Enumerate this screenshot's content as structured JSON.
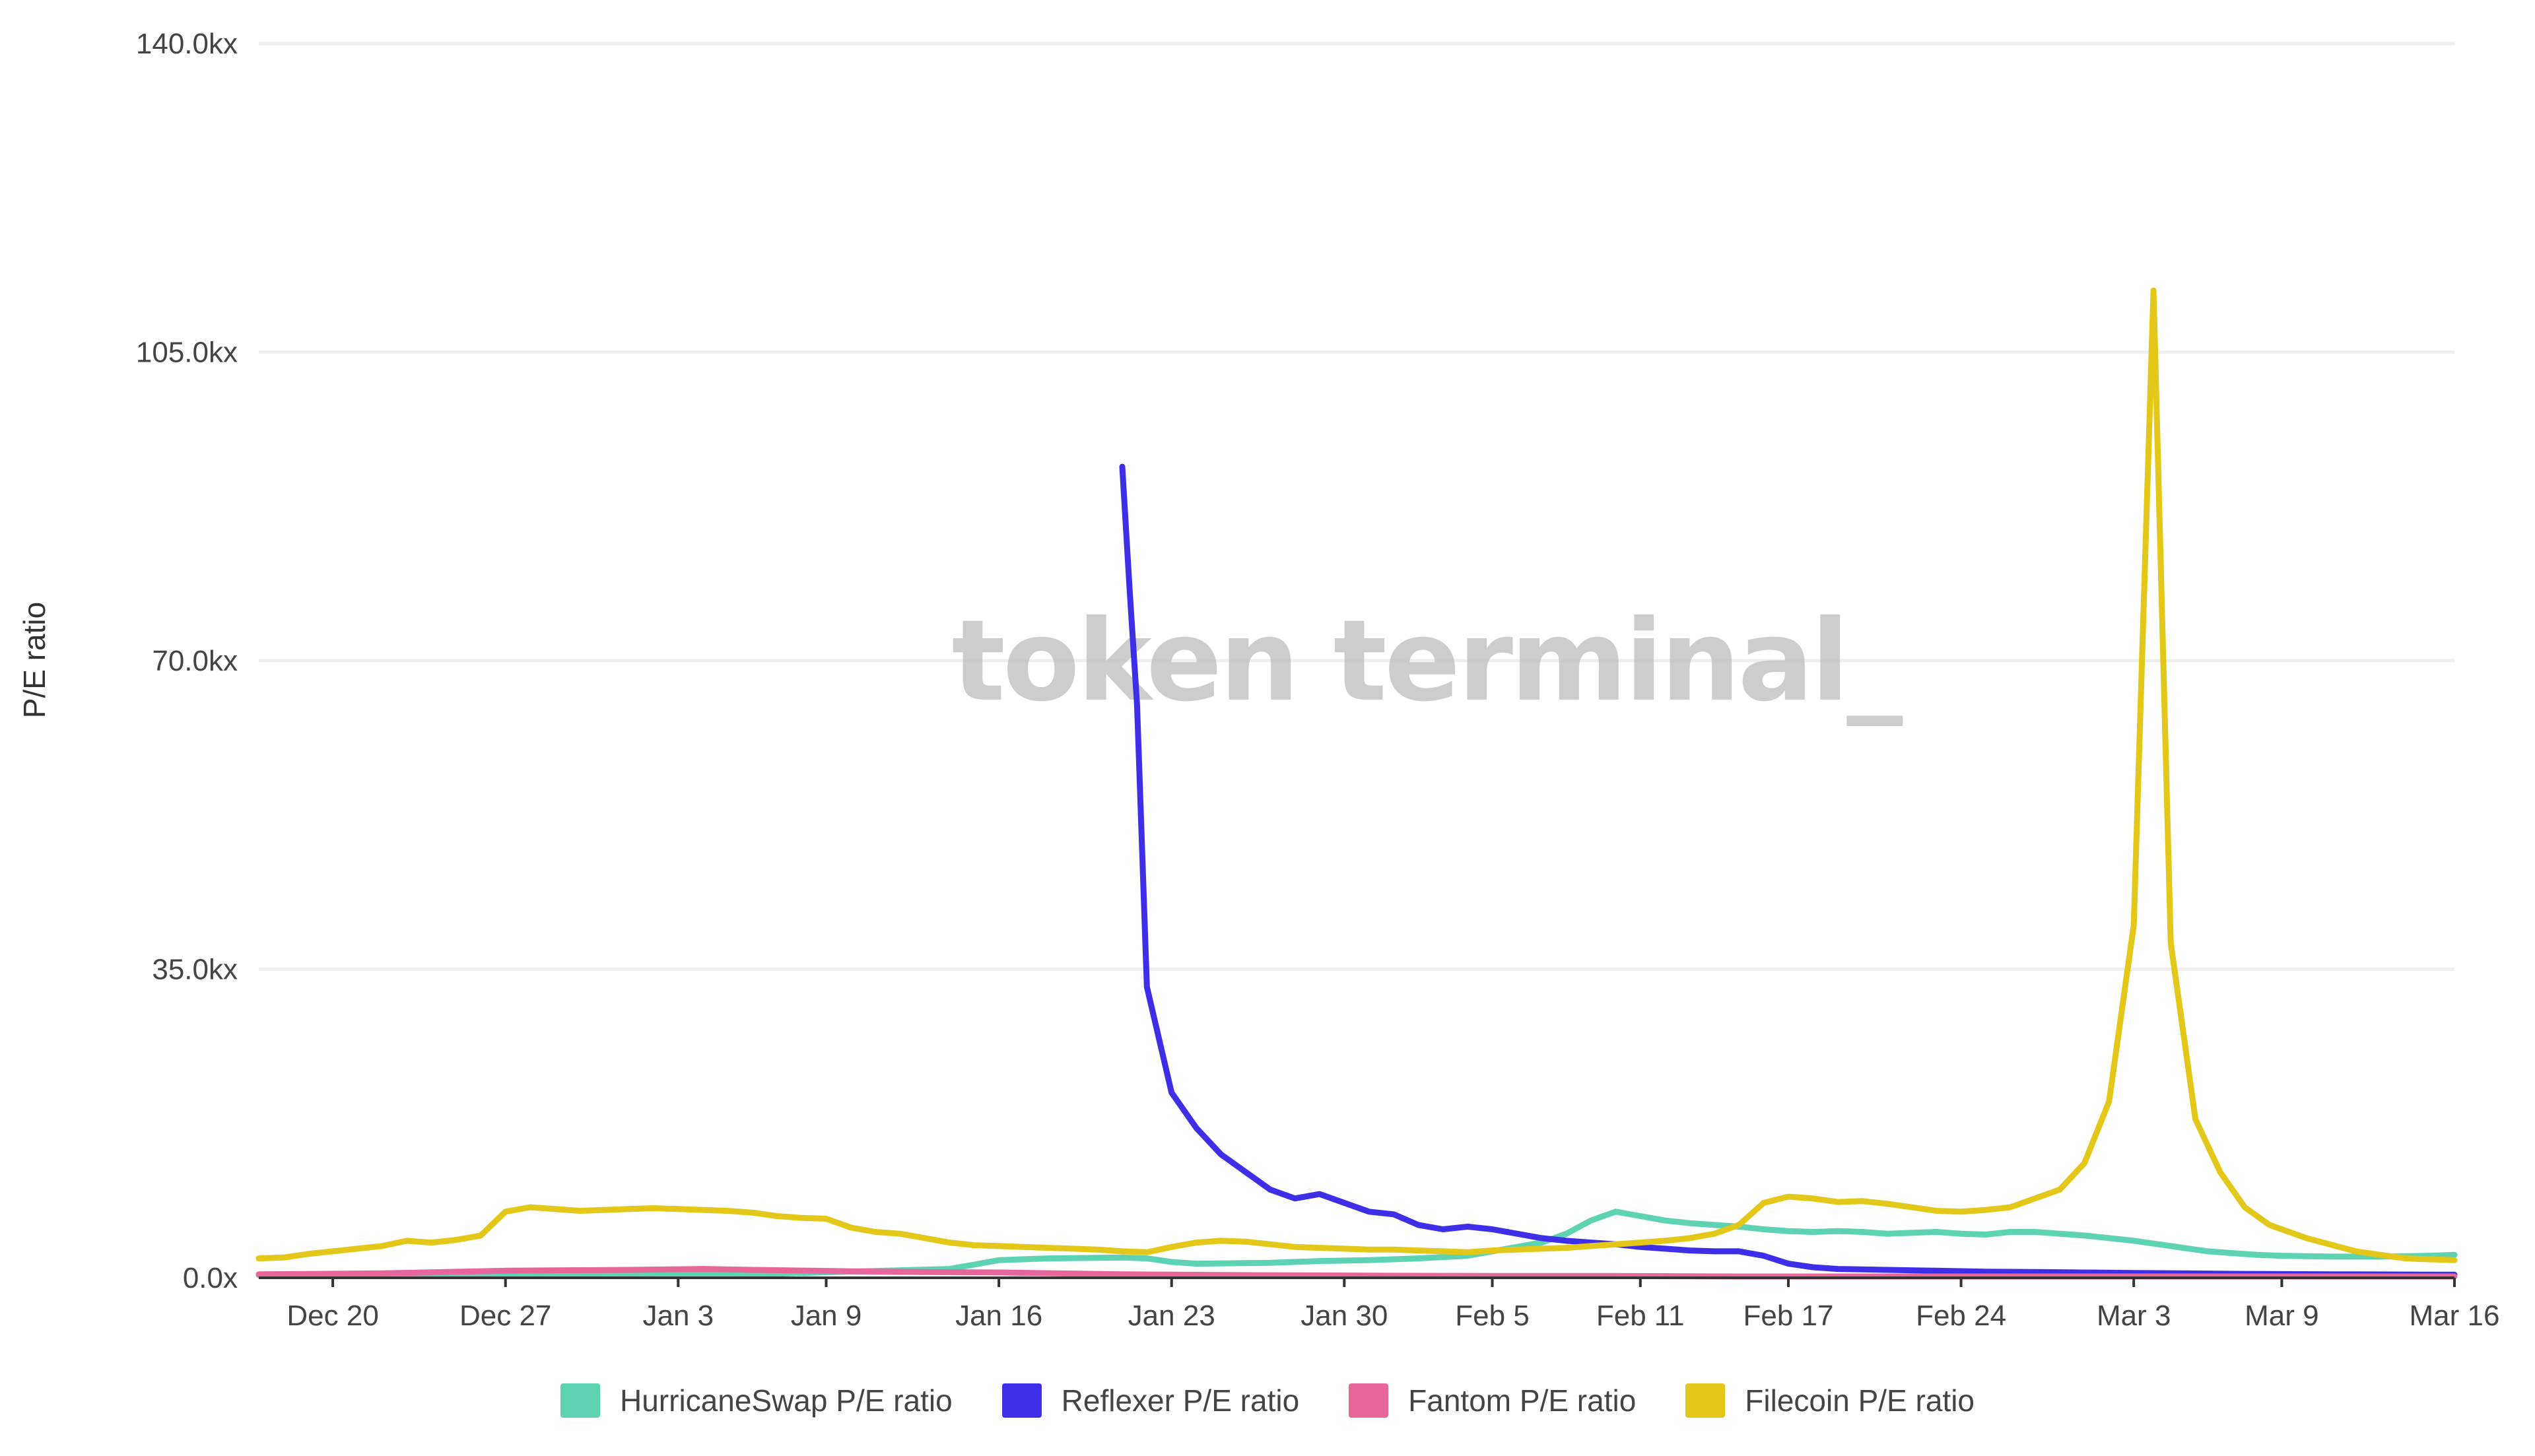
{
  "watermark": "token terminal_",
  "chart_data": {
    "type": "line",
    "title": "",
    "xlabel": "",
    "ylabel": "P/E ratio",
    "ylim": [
      0,
      140000
    ],
    "y_ticks": [
      "0.0x",
      "35.0kx",
      "70.0kx",
      "105.0kx",
      "140.0kx"
    ],
    "y_tick_values": [
      0,
      35000,
      70000,
      105000,
      140000
    ],
    "x_tick_labels": [
      "Dec 20",
      "Dec 27",
      "Jan 3",
      "Jan 9",
      "Jan 16",
      "Jan 23",
      "Jan 30",
      "Feb 5",
      "Feb 11",
      "Feb 17",
      "Feb 24",
      "Mar 3",
      "Mar 9",
      "Mar 16"
    ],
    "x_tick_days": [
      3,
      10,
      17,
      23,
      30,
      37,
      44,
      50,
      56,
      62,
      69,
      76,
      82,
      89
    ],
    "x_day_range": [
      0,
      89
    ],
    "x_start_date": "Dec 17",
    "grid": true,
    "legend_position": "bottom",
    "series": [
      {
        "name": "HurricaneSwap P/E ratio",
        "color": "#5dd3b3",
        "points": [
          [
            0,
            300
          ],
          [
            10,
            300
          ],
          [
            20,
            400
          ],
          [
            28,
            1000
          ],
          [
            29,
            1500
          ],
          [
            30,
            2000
          ],
          [
            32,
            2200
          ],
          [
            35,
            2300
          ],
          [
            36,
            2200
          ],
          [
            37,
            1800
          ],
          [
            38,
            1600
          ],
          [
            41,
            1700
          ],
          [
            43,
            1900
          ],
          [
            45,
            2000
          ],
          [
            47,
            2200
          ],
          [
            49,
            2500
          ],
          [
            50,
            3000
          ],
          [
            52,
            4000
          ],
          [
            53,
            5000
          ],
          [
            54,
            6500
          ],
          [
            55,
            7500
          ],
          [
            56,
            7000
          ],
          [
            57,
            6500
          ],
          [
            58,
            6200
          ],
          [
            59,
            6000
          ],
          [
            60,
            5800
          ],
          [
            61,
            5500
          ],
          [
            62,
            5300
          ],
          [
            63,
            5200
          ],
          [
            64,
            5300
          ],
          [
            65,
            5200
          ],
          [
            66,
            5000
          ],
          [
            67,
            5100
          ],
          [
            68,
            5200
          ],
          [
            69,
            5000
          ],
          [
            70,
            4900
          ],
          [
            71,
            5200
          ],
          [
            72,
            5200
          ],
          [
            73,
            5000
          ],
          [
            74,
            4800
          ],
          [
            75,
            4500
          ],
          [
            76,
            4200
          ],
          [
            77,
            3800
          ],
          [
            78,
            3400
          ],
          [
            79,
            3000
          ],
          [
            80,
            2800
          ],
          [
            81,
            2600
          ],
          [
            82,
            2500
          ],
          [
            84,
            2400
          ],
          [
            86,
            2400
          ],
          [
            88,
            2500
          ],
          [
            89,
            2600
          ]
        ]
      },
      {
        "name": "Reflexer P/E ratio",
        "color": "#3f2ee8",
        "points": [
          [
            35,
            92000
          ],
          [
            35.3,
            78000
          ],
          [
            35.6,
            65000
          ],
          [
            36,
            33000
          ],
          [
            37,
            21000
          ],
          [
            38,
            17000
          ],
          [
            39,
            14000
          ],
          [
            40,
            12000
          ],
          [
            41,
            10000
          ],
          [
            42,
            9000
          ],
          [
            43,
            9500
          ],
          [
            44,
            8500
          ],
          [
            45,
            7500
          ],
          [
            46,
            7200
          ],
          [
            47,
            6000
          ],
          [
            48,
            5500
          ],
          [
            49,
            5800
          ],
          [
            50,
            5500
          ],
          [
            51,
            5000
          ],
          [
            52,
            4500
          ],
          [
            53,
            4200
          ],
          [
            54,
            4000
          ],
          [
            55,
            3800
          ],
          [
            56,
            3500
          ],
          [
            57,
            3300
          ],
          [
            58,
            3100
          ],
          [
            59,
            3000
          ],
          [
            60,
            3000
          ],
          [
            61,
            2500
          ],
          [
            62,
            1600
          ],
          [
            63,
            1200
          ],
          [
            64,
            1000
          ],
          [
            66,
            900
          ],
          [
            68,
            800
          ],
          [
            70,
            700
          ],
          [
            72,
            650
          ],
          [
            74,
            600
          ],
          [
            76,
            550
          ],
          [
            78,
            500
          ],
          [
            80,
            450
          ],
          [
            84,
            400
          ],
          [
            89,
            350
          ]
        ]
      },
      {
        "name": "Fantom P/E ratio",
        "color": "#e8679a",
        "points": [
          [
            0,
            400
          ],
          [
            5,
            500
          ],
          [
            10,
            800
          ],
          [
            15,
            900
          ],
          [
            18,
            1000
          ],
          [
            20,
            900
          ],
          [
            25,
            700
          ],
          [
            30,
            600
          ],
          [
            35,
            400
          ],
          [
            40,
            300
          ],
          [
            45,
            250
          ],
          [
            50,
            200
          ],
          [
            55,
            200
          ],
          [
            60,
            150
          ],
          [
            65,
            150
          ],
          [
            70,
            150
          ],
          [
            75,
            150
          ],
          [
            80,
            150
          ],
          [
            85,
            150
          ],
          [
            89,
            150
          ]
        ]
      },
      {
        "name": "Filecoin P/E ratio",
        "color": "#e3c81a",
        "points": [
          [
            0,
            2200
          ],
          [
            1,
            2300
          ],
          [
            2,
            2700
          ],
          [
            3,
            3000
          ],
          [
            4,
            3300
          ],
          [
            5,
            3600
          ],
          [
            6,
            4200
          ],
          [
            7,
            4000
          ],
          [
            8,
            4300
          ],
          [
            9,
            4800
          ],
          [
            10,
            7500
          ],
          [
            11,
            8000
          ],
          [
            12,
            7800
          ],
          [
            13,
            7600
          ],
          [
            14,
            7700
          ],
          [
            15,
            7800
          ],
          [
            16,
            7900
          ],
          [
            17,
            7800
          ],
          [
            18,
            7700
          ],
          [
            19,
            7600
          ],
          [
            20,
            7400
          ],
          [
            21,
            7000
          ],
          [
            22,
            6800
          ],
          [
            23,
            6700
          ],
          [
            24,
            5700
          ],
          [
            25,
            5200
          ],
          [
            26,
            5000
          ],
          [
            27,
            4500
          ],
          [
            28,
            4000
          ],
          [
            29,
            3700
          ],
          [
            30,
            3600
          ],
          [
            31,
            3500
          ],
          [
            32,
            3400
          ],
          [
            33,
            3300
          ],
          [
            34,
            3200
          ],
          [
            35,
            3000
          ],
          [
            36,
            2900
          ],
          [
            37,
            3500
          ],
          [
            38,
            4000
          ],
          [
            39,
            4200
          ],
          [
            40,
            4100
          ],
          [
            41,
            3800
          ],
          [
            42,
            3500
          ],
          [
            43,
            3400
          ],
          [
            44,
            3300
          ],
          [
            45,
            3200
          ],
          [
            46,
            3200
          ],
          [
            47,
            3100
          ],
          [
            48,
            3000
          ],
          [
            49,
            2900
          ],
          [
            50,
            3100
          ],
          [
            51,
            3200
          ],
          [
            52,
            3300
          ],
          [
            53,
            3400
          ],
          [
            54,
            3600
          ],
          [
            55,
            3800
          ],
          [
            56,
            4000
          ],
          [
            57,
            4200
          ],
          [
            58,
            4500
          ],
          [
            59,
            5000
          ],
          [
            60,
            6000
          ],
          [
            61,
            8500
          ],
          [
            62,
            9200
          ],
          [
            63,
            9000
          ],
          [
            64,
            8600
          ],
          [
            65,
            8700
          ],
          [
            66,
            8400
          ],
          [
            67,
            8000
          ],
          [
            68,
            7600
          ],
          [
            69,
            7500
          ],
          [
            70,
            7700
          ],
          [
            71,
            8000
          ],
          [
            72,
            9000
          ],
          [
            73,
            10000
          ],
          [
            74,
            13000
          ],
          [
            75,
            20000
          ],
          [
            76,
            40000
          ],
          [
            76.8,
            112000
          ],
          [
            77.5,
            38000
          ],
          [
            78.5,
            18000
          ],
          [
            79.5,
            12000
          ],
          [
            80.5,
            8000
          ],
          [
            81.5,
            6000
          ],
          [
            83,
            4500
          ],
          [
            85,
            3000
          ],
          [
            87,
            2200
          ],
          [
            89,
            2000
          ]
        ]
      }
    ]
  }
}
